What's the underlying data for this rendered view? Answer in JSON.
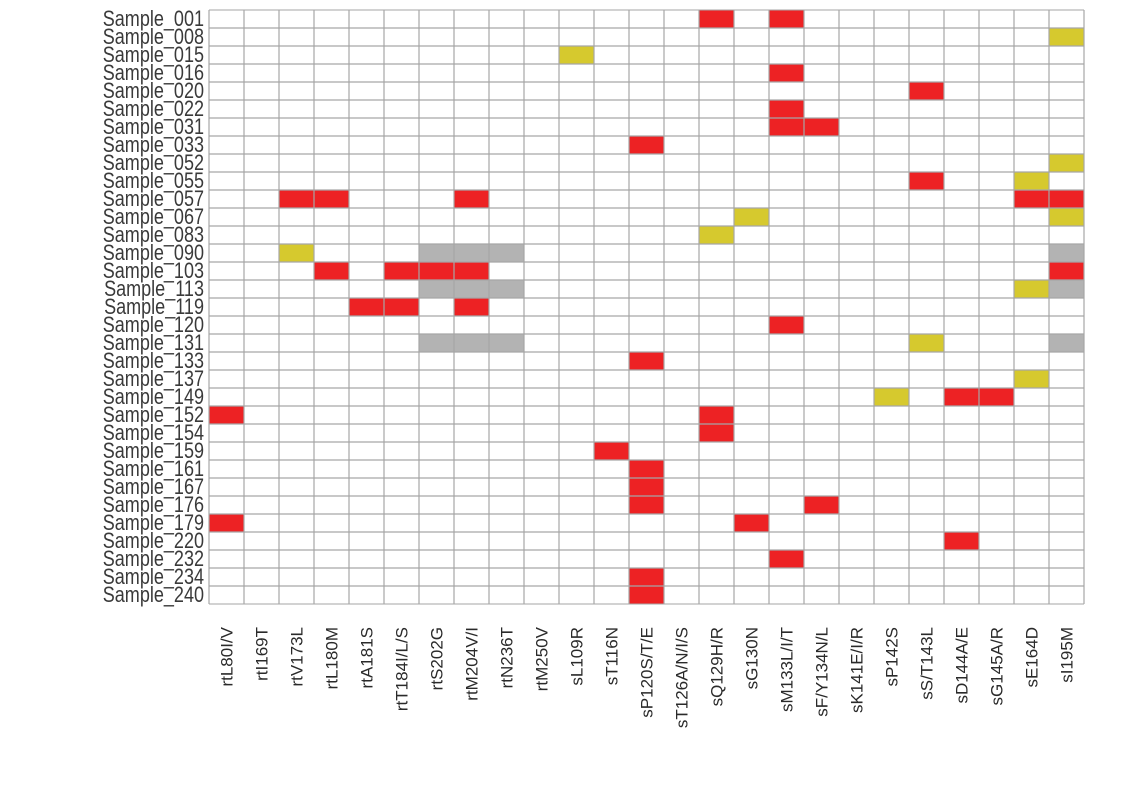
{
  "chart_data": {
    "type": "heatmap",
    "title": "",
    "xlabel": "",
    "ylabel": "",
    "grid": true,
    "legend": "none",
    "rows": [
      "Sample_001",
      "Sample_008",
      "Sample_015",
      "Sample_016",
      "Sample_020",
      "Sample_022",
      "Sample_031",
      "Sample_033",
      "Sample_052",
      "Sample_055",
      "Sample_057",
      "Sample_067",
      "Sample_083",
      "Sample_090",
      "Sample_103",
      "Sample_113",
      "Sample_119",
      "Sample_120",
      "Sample_131",
      "Sample_133",
      "Sample_137",
      "Sample_149",
      "Sample_152",
      "Sample_154",
      "Sample_159",
      "Sample_161",
      "Sample_167",
      "Sample_176",
      "Sample_179",
      "Sample_220",
      "Sample_232",
      "Sample_234",
      "Sample_240"
    ],
    "columns": [
      "rtL80I/V",
      "rtI169T",
      "rtV173L",
      "rtL180M",
      "rtA181S",
      "rtT184I/L/S",
      "rtS202G",
      "rtM204V/I",
      "rtN236T",
      "rtM250V",
      "sL109R",
      "sT116N",
      "sP120S/T/E",
      "sT126A/N/I/S",
      "sQ129H/R",
      "sG130N",
      "sM133L/I/T",
      "sF/Y134N/L",
      "sK141E/I/R",
      "sP142S",
      "sS/T143L",
      "sD144A/E",
      "sG145A/R",
      "sE164D",
      "sI195M"
    ],
    "categories": {
      "0": {
        "name": "absent",
        "color": "#ffffff"
      },
      "1": {
        "name": "red",
        "color": "#ed2224"
      },
      "2": {
        "name": "yellow",
        "color": "#d6c92e"
      },
      "3": {
        "name": "gray",
        "color": "#b3b3b3"
      }
    },
    "values": [
      [
        0,
        0,
        0,
        0,
        0,
        0,
        0,
        0,
        0,
        0,
        0,
        0,
        0,
        0,
        1,
        0,
        1,
        0,
        0,
        0,
        0,
        0,
        0,
        0,
        0
      ],
      [
        0,
        0,
        0,
        0,
        0,
        0,
        0,
        0,
        0,
        0,
        0,
        0,
        0,
        0,
        0,
        0,
        0,
        0,
        0,
        0,
        0,
        0,
        0,
        0,
        2
      ],
      [
        0,
        0,
        0,
        0,
        0,
        0,
        0,
        0,
        0,
        0,
        2,
        0,
        0,
        0,
        0,
        0,
        0,
        0,
        0,
        0,
        0,
        0,
        0,
        0,
        0
      ],
      [
        0,
        0,
        0,
        0,
        0,
        0,
        0,
        0,
        0,
        0,
        0,
        0,
        0,
        0,
        0,
        0,
        1,
        0,
        0,
        0,
        0,
        0,
        0,
        0,
        0
      ],
      [
        0,
        0,
        0,
        0,
        0,
        0,
        0,
        0,
        0,
        0,
        0,
        0,
        0,
        0,
        0,
        0,
        0,
        0,
        0,
        0,
        1,
        0,
        0,
        0,
        0
      ],
      [
        0,
        0,
        0,
        0,
        0,
        0,
        0,
        0,
        0,
        0,
        0,
        0,
        0,
        0,
        0,
        0,
        1,
        0,
        0,
        0,
        0,
        0,
        0,
        0,
        0
      ],
      [
        0,
        0,
        0,
        0,
        0,
        0,
        0,
        0,
        0,
        0,
        0,
        0,
        0,
        0,
        0,
        0,
        1,
        1,
        0,
        0,
        0,
        0,
        0,
        0,
        0
      ],
      [
        0,
        0,
        0,
        0,
        0,
        0,
        0,
        0,
        0,
        0,
        0,
        0,
        1,
        0,
        0,
        0,
        0,
        0,
        0,
        0,
        0,
        0,
        0,
        0,
        0
      ],
      [
        0,
        0,
        0,
        0,
        0,
        0,
        0,
        0,
        0,
        0,
        0,
        0,
        0,
        0,
        0,
        0,
        0,
        0,
        0,
        0,
        0,
        0,
        0,
        0,
        2
      ],
      [
        0,
        0,
        0,
        0,
        0,
        0,
        0,
        0,
        0,
        0,
        0,
        0,
        0,
        0,
        0,
        0,
        0,
        0,
        0,
        0,
        1,
        0,
        0,
        2,
        0
      ],
      [
        0,
        0,
        1,
        1,
        0,
        0,
        0,
        1,
        0,
        0,
        0,
        0,
        0,
        0,
        0,
        0,
        0,
        0,
        0,
        0,
        0,
        0,
        0,
        1,
        1
      ],
      [
        0,
        0,
        0,
        0,
        0,
        0,
        0,
        0,
        0,
        0,
        0,
        0,
        0,
        0,
        0,
        2,
        0,
        0,
        0,
        0,
        0,
        0,
        0,
        0,
        2
      ],
      [
        0,
        0,
        0,
        0,
        0,
        0,
        0,
        0,
        0,
        0,
        0,
        0,
        0,
        0,
        2,
        0,
        0,
        0,
        0,
        0,
        0,
        0,
        0,
        0,
        0
      ],
      [
        0,
        0,
        2,
        0,
        0,
        0,
        3,
        3,
        3,
        0,
        0,
        0,
        0,
        0,
        0,
        0,
        0,
        0,
        0,
        0,
        0,
        0,
        0,
        0,
        3
      ],
      [
        0,
        0,
        0,
        1,
        0,
        1,
        1,
        1,
        0,
        0,
        0,
        0,
        0,
        0,
        0,
        0,
        0,
        0,
        0,
        0,
        0,
        0,
        0,
        0,
        1
      ],
      [
        0,
        0,
        0,
        0,
        0,
        0,
        3,
        3,
        3,
        0,
        0,
        0,
        0,
        0,
        0,
        0,
        0,
        0,
        0,
        0,
        0,
        0,
        0,
        2,
        3
      ],
      [
        0,
        0,
        0,
        0,
        1,
        1,
        0,
        1,
        0,
        0,
        0,
        0,
        0,
        0,
        0,
        0,
        0,
        0,
        0,
        0,
        0,
        0,
        0,
        0,
        0
      ],
      [
        0,
        0,
        0,
        0,
        0,
        0,
        0,
        0,
        0,
        0,
        0,
        0,
        0,
        0,
        0,
        0,
        1,
        0,
        0,
        0,
        0,
        0,
        0,
        0,
        0
      ],
      [
        0,
        0,
        0,
        0,
        0,
        0,
        3,
        3,
        3,
        0,
        0,
        0,
        0,
        0,
        0,
        0,
        0,
        0,
        0,
        0,
        2,
        0,
        0,
        0,
        3
      ],
      [
        0,
        0,
        0,
        0,
        0,
        0,
        0,
        0,
        0,
        0,
        0,
        0,
        1,
        0,
        0,
        0,
        0,
        0,
        0,
        0,
        0,
        0,
        0,
        0,
        0
      ],
      [
        0,
        0,
        0,
        0,
        0,
        0,
        0,
        0,
        0,
        0,
        0,
        0,
        0,
        0,
        0,
        0,
        0,
        0,
        0,
        0,
        0,
        0,
        0,
        2,
        0
      ],
      [
        0,
        0,
        0,
        0,
        0,
        0,
        0,
        0,
        0,
        0,
        0,
        0,
        0,
        0,
        0,
        0,
        0,
        0,
        0,
        2,
        0,
        1,
        1,
        0,
        0
      ],
      [
        1,
        0,
        0,
        0,
        0,
        0,
        0,
        0,
        0,
        0,
        0,
        0,
        0,
        0,
        1,
        0,
        0,
        0,
        0,
        0,
        0,
        0,
        0,
        0,
        0
      ],
      [
        0,
        0,
        0,
        0,
        0,
        0,
        0,
        0,
        0,
        0,
        0,
        0,
        0,
        0,
        1,
        0,
        0,
        0,
        0,
        0,
        0,
        0,
        0,
        0,
        0
      ],
      [
        0,
        0,
        0,
        0,
        0,
        0,
        0,
        0,
        0,
        0,
        0,
        1,
        0,
        0,
        0,
        0,
        0,
        0,
        0,
        0,
        0,
        0,
        0,
        0,
        0
      ],
      [
        0,
        0,
        0,
        0,
        0,
        0,
        0,
        0,
        0,
        0,
        0,
        0,
        1,
        0,
        0,
        0,
        0,
        0,
        0,
        0,
        0,
        0,
        0,
        0,
        0
      ],
      [
        0,
        0,
        0,
        0,
        0,
        0,
        0,
        0,
        0,
        0,
        0,
        0,
        1,
        0,
        0,
        0,
        0,
        0,
        0,
        0,
        0,
        0,
        0,
        0,
        0
      ],
      [
        0,
        0,
        0,
        0,
        0,
        0,
        0,
        0,
        0,
        0,
        0,
        0,
        1,
        0,
        0,
        0,
        0,
        1,
        0,
        0,
        0,
        0,
        0,
        0,
        0
      ],
      [
        1,
        0,
        0,
        0,
        0,
        0,
        0,
        0,
        0,
        0,
        0,
        0,
        0,
        0,
        0,
        1,
        0,
        0,
        0,
        0,
        0,
        0,
        0,
        0,
        0
      ],
      [
        0,
        0,
        0,
        0,
        0,
        0,
        0,
        0,
        0,
        0,
        0,
        0,
        0,
        0,
        0,
        0,
        0,
        0,
        0,
        0,
        0,
        1,
        0,
        0,
        0
      ],
      [
        0,
        0,
        0,
        0,
        0,
        0,
        0,
        0,
        0,
        0,
        0,
        0,
        0,
        0,
        0,
        0,
        1,
        0,
        0,
        0,
        0,
        0,
        0,
        0,
        0
      ],
      [
        0,
        0,
        0,
        0,
        0,
        0,
        0,
        0,
        0,
        0,
        0,
        0,
        1,
        0,
        0,
        0,
        0,
        0,
        0,
        0,
        0,
        0,
        0,
        0,
        0
      ],
      [
        0,
        0,
        0,
        0,
        0,
        0,
        0,
        0,
        0,
        0,
        0,
        0,
        1,
        0,
        0,
        0,
        0,
        0,
        0,
        0,
        0,
        0,
        0,
        0,
        0
      ]
    ]
  },
  "style": {
    "grid_line_color": "#a6a6a6",
    "label_color": "#333333"
  }
}
